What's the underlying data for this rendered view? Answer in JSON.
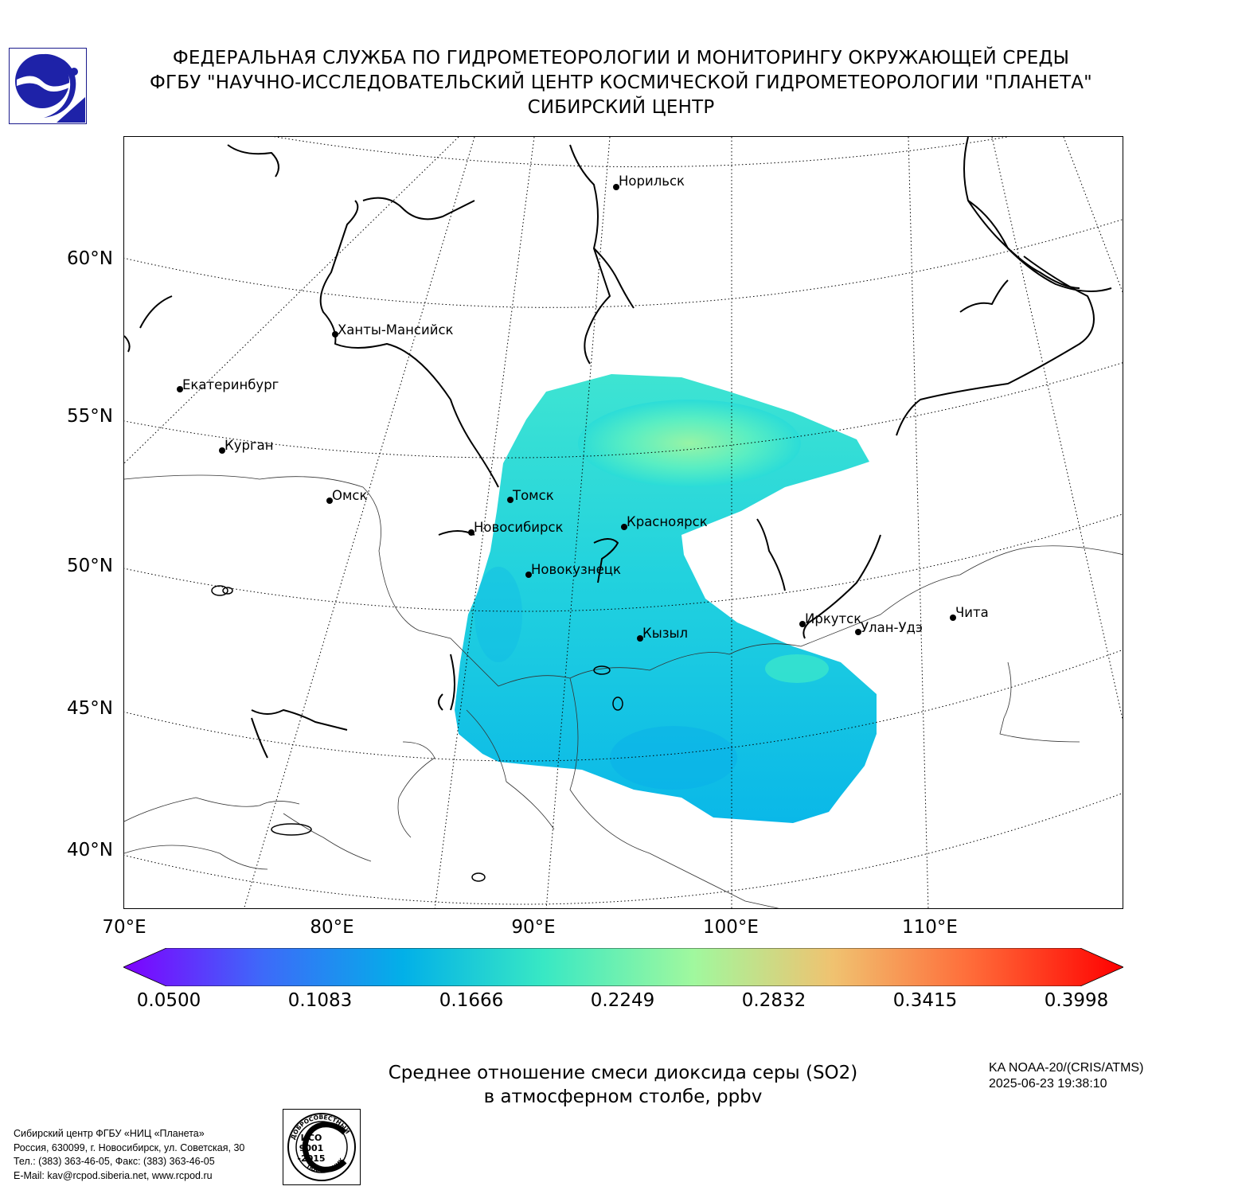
{
  "header": {
    "line1": "ФЕДЕРАЛЬНАЯ СЛУЖБА ПО ГИДРОМЕТЕОРОЛОГИИ И МОНИТОРИНГУ ОКРУЖАЮЩЕЙ СРЕДЫ",
    "line2": "ФГБУ \"НАУЧНО-ИССЛЕДОВАТЕЛЬСКИЙ ЦЕНТР КОСМИЧЕСКОЙ ГИДРОМЕТЕОРОЛОГИИ \"ПЛАНЕТА\"",
    "line3": "СИБИРСКИЙ ЦЕНТР"
  },
  "axes": {
    "lat_labels": [
      "60°N",
      "55°N",
      "50°N",
      "45°N",
      "40°N"
    ],
    "lon_labels": [
      "70°E",
      "80°E",
      "90°E",
      "100°E",
      "110°E"
    ]
  },
  "cities": [
    {
      "name": "Норильск"
    },
    {
      "name": "Ханты-Мансийск"
    },
    {
      "name": "Екатеринбург"
    },
    {
      "name": "Курган"
    },
    {
      "name": "Омск"
    },
    {
      "name": "Томск"
    },
    {
      "name": "Новосибирск"
    },
    {
      "name": "Красноярск"
    },
    {
      "name": "Новокузнецк"
    },
    {
      "name": "Кызыл"
    },
    {
      "name": "Иркутск"
    },
    {
      "name": "Улан-Удэ"
    },
    {
      "name": "Чита"
    }
  ],
  "colorbar": {
    "ticks": [
      "0.0500",
      "0.1083",
      "0.1666",
      "0.2249",
      "0.2832",
      "0.3415",
      "0.3998"
    ],
    "colors": [
      "#7f00ff",
      "#2c7ef7",
      "#00b4e6",
      "#36e7c6",
      "#a0f99c",
      "#ecc86f",
      "#ff6a38",
      "#ff0000"
    ]
  },
  "subtitle": {
    "line1": "Среднее отношение смеси диоксида серы (SO2)",
    "line2": "в атмосферном столбе, ppbv"
  },
  "satellite": {
    "line1": "KA NOAA-20/(CRIS/ATMS)",
    "line2": "2025-06-23 19:38:10"
  },
  "contacts": {
    "line1": "Сибирский центр ФГБУ «НИЦ «Планета»",
    "line2": "Россия, 630099, г. Новосибирск, ул. Советская, 30",
    "line3": "Тел.: (383) 363-46-05, Факс: (383) 363-46-05",
    "line4": "E-Mail: kav@rcpod.siberia.net, www.rcpod.ru"
  },
  "iso_badge": {
    "top": "ДОБРОСОВЕСТНЫЙ",
    "iso": "ИСО",
    "num": "9001",
    "year": "-2015",
    "bottom": "ПОСТАВЩИК"
  },
  "data_fill": {
    "min": 0.05,
    "max": 0.3998,
    "typical_value": 0.15,
    "max_region_value": 0.21
  }
}
